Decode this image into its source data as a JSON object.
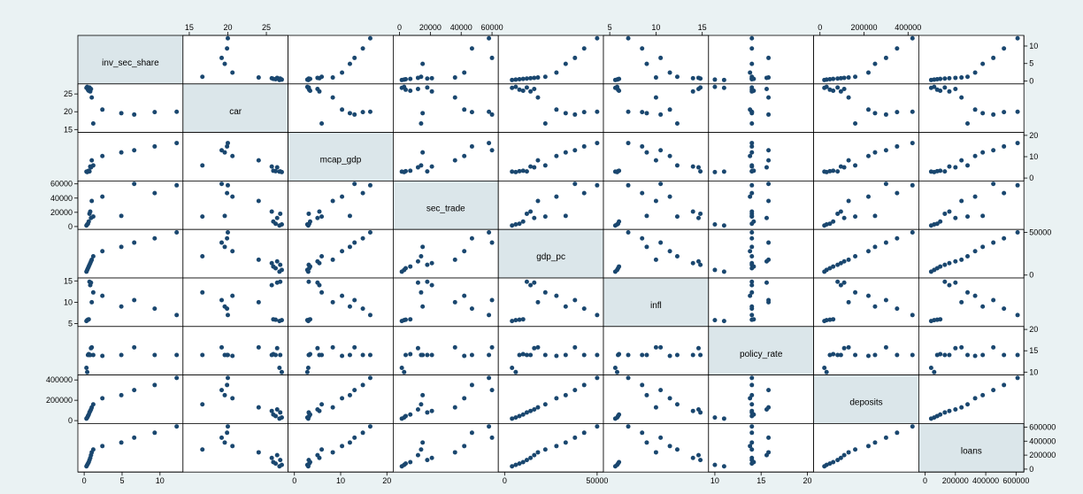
{
  "chart_data": {
    "type": "scatter",
    "title": "",
    "colors": {
      "background": "#eaf2f3",
      "panel": "#ffffff",
      "diagonal": "#dbe6ea",
      "marker": "#1a476f"
    },
    "variables": [
      {
        "name": "inv_sec_share",
        "ticks": [
          {
            "v": 0,
            "label": "0"
          },
          {
            "v": 5,
            "label": "5"
          },
          {
            "v": 10,
            "label": "10"
          }
        ],
        "xaxis": "bottom",
        "yaxis": "right",
        "data": [
          0.3,
          0.4,
          0.5,
          0.6,
          0.7,
          0.8,
          0.9,
          1.0,
          1.2,
          2.4,
          4.9,
          6.6,
          9.3,
          12.2
        ]
      },
      {
        "name": "car",
        "ticks": [
          {
            "v": 15,
            "label": "15"
          },
          {
            "v": 20,
            "label": "20"
          },
          {
            "v": 25,
            "label": "25"
          }
        ],
        "xaxis": "top",
        "yaxis": "left",
        "data": [
          26.7,
          27.0,
          26.2,
          25.9,
          26.8,
          25.7,
          26.4,
          24.0,
          16.7,
          20.6,
          19.6,
          19.2,
          19.9,
          20.0
        ]
      },
      {
        "name": "mcap_gdp",
        "ticks": [
          {
            "v": 0,
            "label": "0"
          },
          {
            "v": 10,
            "label": "10"
          },
          {
            "v": 20,
            "label": "20"
          }
        ],
        "xaxis": "bottom",
        "yaxis": "right",
        "data": [
          3.0,
          2.8,
          3.2,
          3.4,
          3.1,
          5.4,
          5.0,
          8.3,
          5.9,
          10.3,
          12.0,
          13.0,
          14.8,
          16.4
        ]
      },
      {
        "name": "sec_trade",
        "ticks": [
          {
            "v": 0,
            "label": "0"
          },
          {
            "v": 20000,
            "label": "20000"
          },
          {
            "v": 40000,
            "label": "40000"
          },
          {
            "v": 60000,
            "label": "60000"
          }
        ],
        "xaxis": "top",
        "yaxis": "left",
        "data": [
          1500,
          3000,
          4000,
          7000,
          18000,
          21000,
          12000,
          36000,
          14000,
          42000,
          15000,
          60000,
          47000,
          58000
        ]
      },
      {
        "name": "gdp_pc",
        "ticks": [
          {
            "v": 0,
            "label": "0"
          },
          {
            "v": 50000,
            "label": "50000"
          }
        ],
        "xaxis": "bottom",
        "yaxis": "right",
        "data": [
          4000,
          6000,
          8000,
          10000,
          12000,
          14000,
          16000,
          18000,
          22000,
          28000,
          33000,
          38000,
          43000,
          50000
        ]
      },
      {
        "name": "infl",
        "ticks": [
          {
            "v": 5,
            "label": "5"
          },
          {
            "v": 10,
            "label": "10"
          },
          {
            "v": 15,
            "label": "15"
          }
        ],
        "xaxis": "top",
        "yaxis": "left",
        "data": [
          5.6,
          5.8,
          5.9,
          6.0,
          14.8,
          14.0,
          14.6,
          10.0,
          12.3,
          11.5,
          9.0,
          10.5,
          8.5,
          7.0
        ]
      },
      {
        "name": "policy_rate",
        "ticks": [
          {
            "v": 10,
            "label": "10"
          },
          {
            "v": 15,
            "label": "15"
          },
          {
            "v": 20,
            "label": "20"
          }
        ],
        "xaxis": "bottom",
        "yaxis": "right",
        "data": [
          11.0,
          10.0,
          14.0,
          14.2,
          14.0,
          14.0,
          15.6,
          15.8,
          14.0,
          13.8,
          14.0,
          15.8,
          14.0,
          14.0
        ]
      },
      {
        "name": "deposits",
        "ticks": [
          {
            "v": 0,
            "label": "0"
          },
          {
            "v": 200000,
            "label": "200000"
          },
          {
            "v": 400000,
            "label": "400000"
          }
        ],
        "xaxis": "top",
        "yaxis": "left",
        "data": [
          20000,
          30000,
          45000,
          60000,
          80000,
          95000,
          110000,
          130000,
          160000,
          220000,
          250000,
          300000,
          350000,
          420000
        ]
      },
      {
        "name": "loans",
        "ticks": [
          {
            "v": 0,
            "label": "0"
          },
          {
            "v": 200000,
            "label": "200000"
          },
          {
            "v": 400000,
            "label": "400000"
          },
          {
            "v": 600000,
            "label": "600000"
          }
        ],
        "xaxis": "bottom",
        "yaxis": "right",
        "data": [
          40000,
          60000,
          80000,
          100000,
          130000,
          160000,
          200000,
          240000,
          280000,
          330000,
          380000,
          450000,
          520000,
          610000
        ]
      }
    ]
  }
}
